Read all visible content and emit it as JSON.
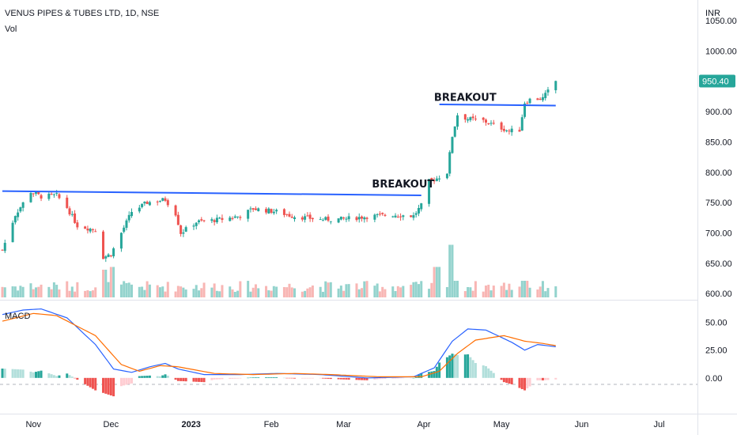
{
  "chart_data": [
    {
      "type": "candlestick",
      "title": "VENUS PIPES & TUBES LTD, 1D, NSE",
      "subtitle": "Vol",
      "currency": "INR",
      "last_price": "950.40",
      "y_ticks": [
        "600.00",
        "650.00",
        "700.00",
        "750.00",
        "800.00",
        "850.00",
        "900.00",
        "950.00",
        "1000.00",
        "1050.00"
      ],
      "ylim": [
        595,
        1075
      ],
      "x_ticks": [
        "Nov",
        "Dec",
        "2023",
        "Feb",
        "Mar",
        "Apr",
        "May",
        "Jun",
        "Jul"
      ],
      "colors": {
        "up": "#26a69a",
        "down": "#ef5350",
        "trendline": "#2962ff",
        "last_price_bg": "#26a69a"
      },
      "annotations": [
        {
          "text": "BREAKOUT",
          "date": "2023-03-24",
          "price": 775
        },
        {
          "text": "BREAKOUT",
          "date": "2023-04-17",
          "price": 918
        }
      ],
      "trendlines": [
        {
          "from": {
            "date": "2022-10-20",
            "price": 769
          },
          "to": {
            "date": "2023-03-31",
            "price": 762
          }
        },
        {
          "from": {
            "date": "2023-04-07",
            "price": 912
          },
          "to": {
            "date": "2023-05-22",
            "price": 910
          }
        }
      ],
      "price_anchors": [
        [
          "2022-10-20",
          672
        ],
        [
          "2022-10-25",
          730
        ],
        [
          "2022-10-31",
          768
        ],
        [
          "2022-11-04",
          760
        ],
        [
          "2022-11-10",
          762
        ],
        [
          "2022-11-14",
          742
        ],
        [
          "2022-11-18",
          712
        ],
        [
          "2022-11-25",
          705
        ],
        [
          "2022-11-28",
          660
        ],
        [
          "2022-12-01",
          665
        ],
        [
          "2022-12-05",
          700
        ],
        [
          "2022-12-09",
          735
        ],
        [
          "2022-12-15",
          750
        ],
        [
          "2022-12-22",
          755
        ],
        [
          "2022-12-26",
          732
        ],
        [
          "2022-12-28",
          700
        ],
        [
          "2023-01-03",
          718
        ],
        [
          "2023-01-12",
          722
        ],
        [
          "2023-01-20",
          728
        ],
        [
          "2023-01-25",
          740
        ],
        [
          "2023-02-03",
          735
        ],
        [
          "2023-02-09",
          728
        ],
        [
          "2023-02-20",
          722
        ],
        [
          "2023-03-01",
          723
        ],
        [
          "2023-03-10",
          727
        ],
        [
          "2023-03-20",
          730
        ],
        [
          "2023-03-28",
          728
        ],
        [
          "2023-03-31",
          745
        ],
        [
          "2023-04-03",
          785
        ],
        [
          "2023-04-06",
          790
        ],
        [
          "2023-04-10",
          800
        ],
        [
          "2023-04-12",
          860
        ],
        [
          "2023-04-14",
          895
        ],
        [
          "2023-04-18",
          888
        ],
        [
          "2023-04-24",
          885
        ],
        [
          "2023-04-28",
          878
        ],
        [
          "2023-05-04",
          868
        ],
        [
          "2023-05-08",
          870
        ],
        [
          "2023-05-10",
          915
        ],
        [
          "2023-05-12",
          920
        ],
        [
          "2023-05-17",
          922
        ],
        [
          "2023-05-22",
          950.4
        ]
      ],
      "volume_spikes": [
        [
          "2022-11-28",
          0.5
        ],
        [
          "2022-12-02",
          0.55
        ],
        [
          "2023-04-12",
          0.95
        ],
        [
          "2023-04-06",
          0.55
        ],
        [
          "2023-04-14",
          0.3
        ],
        [
          "2023-05-10",
          0.3
        ],
        [
          "2023-05-23",
          0.2
        ]
      ]
    },
    {
      "type": "line",
      "title": "MACD",
      "y_ticks": [
        "50.00",
        "25.00",
        "0.00"
      ],
      "ylim": [
        -30,
        66
      ],
      "colors": {
        "macd": "#2962ff",
        "signal": "#ff6d00",
        "hist_up_strong": "#26a69a",
        "hist_up_weak": "#b2dfdb",
        "hist_down_strong": "#ef5350",
        "hist_down_weak": "#ffcdd2"
      },
      "macd_anchors": [
        [
          "2022-10-20",
          57
        ],
        [
          "2022-10-28",
          61
        ],
        [
          "2022-11-04",
          62
        ],
        [
          "2022-11-14",
          54
        ],
        [
          "2022-11-25",
          30
        ],
        [
          "2022-12-02",
          8
        ],
        [
          "2022-12-09",
          5
        ],
        [
          "2022-12-16",
          10
        ],
        [
          "2022-12-22",
          13
        ],
        [
          "2022-12-27",
          8
        ],
        [
          "2023-01-06",
          3
        ],
        [
          "2023-01-20",
          3
        ],
        [
          "2023-02-03",
          4
        ],
        [
          "2023-02-20",
          3
        ],
        [
          "2023-03-10",
          0
        ],
        [
          "2023-03-28",
          1
        ],
        [
          "2023-04-05",
          9
        ],
        [
          "2023-04-12",
          33
        ],
        [
          "2023-04-18",
          44
        ],
        [
          "2023-04-25",
          43
        ],
        [
          "2023-05-05",
          32
        ],
        [
          "2023-05-10",
          25
        ],
        [
          "2023-05-15",
          30
        ],
        [
          "2023-05-22",
          28
        ]
      ],
      "signal_anchors": [
        [
          "2022-10-20",
          51
        ],
        [
          "2022-11-01",
          58
        ],
        [
          "2022-11-10",
          56
        ],
        [
          "2022-11-25",
          38
        ],
        [
          "2022-12-05",
          12
        ],
        [
          "2022-12-12",
          6
        ],
        [
          "2022-12-20",
          11
        ],
        [
          "2022-12-27",
          10
        ],
        [
          "2023-01-10",
          4
        ],
        [
          "2023-01-25",
          3
        ],
        [
          "2023-02-10",
          4
        ],
        [
          "2023-02-24",
          3
        ],
        [
          "2023-03-15",
          1
        ],
        [
          "2023-03-31",
          1
        ],
        [
          "2023-04-07",
          6
        ],
        [
          "2023-04-14",
          22
        ],
        [
          "2023-04-21",
          34
        ],
        [
          "2023-05-02",
          38
        ],
        [
          "2023-05-10",
          33
        ],
        [
          "2023-05-17",
          31
        ],
        [
          "2023-05-22",
          29
        ]
      ]
    }
  ]
}
